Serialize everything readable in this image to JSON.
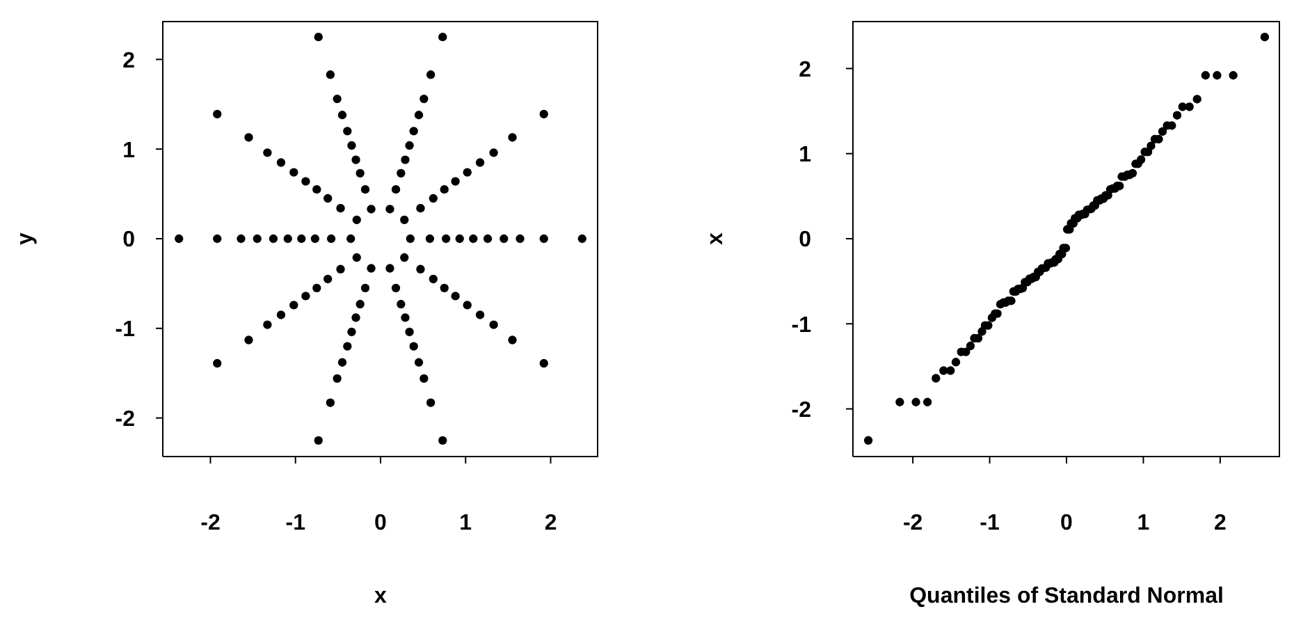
{
  "chart_data": [
    {
      "type": "scatter",
      "xlabel": "x",
      "ylabel": "y",
      "color": "#000000",
      "marker": "circle",
      "xlim": [
        -2.56,
        2.56
      ],
      "ylim": [
        -2.43,
        2.43
      ],
      "xticks": [
        -2,
        -1,
        0,
        1,
        2
      ],
      "yticks": [
        -2,
        -1,
        0,
        1,
        2
      ],
      "x": [
        0.35,
        0.58,
        0.77,
        0.93,
        1.09,
        1.26,
        1.45,
        1.64,
        1.92,
        2.37,
        0.28,
        0.47,
        0.62,
        0.75,
        0.88,
        1.02,
        1.17,
        1.33,
        1.55,
        1.92,
        0.11,
        0.18,
        0.24,
        0.29,
        0.34,
        0.39,
        0.45,
        0.51,
        0.59,
        0.73,
        -0.11,
        -0.18,
        -0.24,
        -0.29,
        -0.34,
        -0.39,
        -0.45,
        -0.51,
        -0.59,
        -0.73,
        -0.28,
        -0.47,
        -0.62,
        -0.75,
        -0.88,
        -1.02,
        -1.17,
        -1.33,
        -1.55,
        -1.92,
        -0.35,
        -0.58,
        -0.77,
        -0.93,
        -1.09,
        -1.26,
        -1.45,
        -1.64,
        -1.92,
        -2.37,
        -0.28,
        -0.47,
        -0.62,
        -0.75,
        -0.88,
        -1.02,
        -1.17,
        -1.33,
        -1.55,
        -1.92,
        -0.11,
        -0.18,
        -0.24,
        -0.29,
        -0.34,
        -0.39,
        -0.45,
        -0.51,
        -0.59,
        -0.73,
        0.11,
        0.18,
        0.24,
        0.29,
        0.34,
        0.39,
        0.45,
        0.51,
        0.59,
        0.73,
        0.28,
        0.47,
        0.62,
        0.75,
        0.88,
        1.02,
        1.17,
        1.33,
        1.55,
        1.92
      ],
      "values": [
        0,
        0,
        0,
        0,
        0,
        0,
        0,
        0,
        0,
        0,
        0.21,
        0.34,
        0.45,
        0.55,
        0.64,
        0.74,
        0.85,
        0.96,
        1.13,
        1.39,
        0.33,
        0.55,
        0.73,
        0.88,
        1.04,
        1.2,
        1.38,
        1.56,
        1.83,
        2.25,
        0.33,
        0.55,
        0.73,
        0.88,
        1.04,
        1.2,
        1.38,
        1.56,
        1.83,
        2.25,
        0.21,
        0.34,
        0.45,
        0.55,
        0.64,
        0.74,
        0.85,
        0.96,
        1.13,
        1.39,
        0,
        0,
        0,
        0,
        0,
        0,
        0,
        0,
        0,
        0,
        -0.21,
        -0.34,
        -0.45,
        -0.55,
        -0.64,
        -0.74,
        -0.85,
        -0.96,
        -1.13,
        -1.39,
        -0.33,
        -0.55,
        -0.73,
        -0.88,
        -1.04,
        -1.2,
        -1.38,
        -1.56,
        -1.83,
        -2.25,
        -0.33,
        -0.55,
        -0.73,
        -0.88,
        -1.04,
        -1.2,
        -1.38,
        -1.56,
        -1.83,
        -2.25,
        -0.21,
        -0.34,
        -0.45,
        -0.55,
        -0.64,
        -0.74,
        -0.85,
        -0.96,
        -1.13,
        -1.39
      ]
    },
    {
      "type": "scatter",
      "xlabel": "Quantiles of Standard Normal",
      "ylabel": "x",
      "color": "#000000",
      "marker": "circle",
      "xlim": [
        -2.78,
        2.78
      ],
      "ylim": [
        -2.56,
        2.56
      ],
      "xticks": [
        -2,
        -1,
        0,
        1,
        2
      ],
      "yticks": [
        -2,
        -1,
        0,
        1,
        2
      ],
      "x": [
        -2.58,
        -2.17,
        -1.96,
        -1.81,
        -1.7,
        -1.6,
        -1.51,
        -1.44,
        -1.37,
        -1.31,
        -1.25,
        -1.2,
        -1.15,
        -1.1,
        -1.06,
        -1.02,
        -0.97,
        -0.93,
        -0.9,
        -0.86,
        -0.82,
        -0.79,
        -0.76,
        -0.72,
        -0.69,
        -0.66,
        -0.63,
        -0.6,
        -0.57,
        -0.54,
        -0.51,
        -0.48,
        -0.45,
        -0.43,
        -0.4,
        -0.37,
        -0.35,
        -0.32,
        -0.27,
        -0.24,
        -0.21,
        -0.19,
        -0.16,
        -0.14,
        -0.11,
        -0.09,
        -0.06,
        -0.04,
        -0.01,
        0.01,
        0.04,
        0.06,
        0.09,
        0.11,
        0.14,
        0.16,
        0.19,
        0.21,
        0.24,
        0.27,
        0.32,
        0.35,
        0.37,
        0.4,
        0.43,
        0.45,
        0.48,
        0.51,
        0.54,
        0.57,
        0.6,
        0.63,
        0.66,
        0.69,
        0.72,
        0.76,
        0.79,
        0.82,
        0.86,
        0.9,
        0.93,
        0.97,
        1.02,
        1.06,
        1.1,
        1.15,
        1.2,
        1.25,
        1.31,
        1.37,
        1.44,
        1.51,
        1.6,
        1.7,
        1.81,
        1.96,
        2.17,
        2.58
      ],
      "values": [
        -2.37,
        -1.92,
        -1.92,
        -1.92,
        -1.64,
        -1.55,
        -1.55,
        -1.45,
        -1.33,
        -1.33,
        -1.26,
        -1.17,
        -1.17,
        -1.09,
        -1.02,
        -1.02,
        -0.93,
        -0.88,
        -0.88,
        -0.77,
        -0.75,
        -0.75,
        -0.73,
        -0.73,
        -0.62,
        -0.62,
        -0.59,
        -0.59,
        -0.58,
        -0.51,
        -0.51,
        -0.47,
        -0.47,
        -0.45,
        -0.45,
        -0.39,
        -0.39,
        -0.35,
        -0.34,
        -0.29,
        -0.29,
        -0.28,
        -0.28,
        -0.24,
        -0.24,
        -0.18,
        -0.18,
        -0.11,
        -0.11,
        0.11,
        0.11,
        0.18,
        0.18,
        0.24,
        0.24,
        0.28,
        0.28,
        0.29,
        0.29,
        0.34,
        0.35,
        0.39,
        0.39,
        0.45,
        0.45,
        0.47,
        0.47,
        0.51,
        0.51,
        0.58,
        0.59,
        0.59,
        0.62,
        0.62,
        0.73,
        0.73,
        0.75,
        0.75,
        0.77,
        0.88,
        0.88,
        0.93,
        1.02,
        1.02,
        1.09,
        1.17,
        1.17,
        1.26,
        1.33,
        1.33,
        1.45,
        1.55,
        1.55,
        1.64,
        1.92,
        1.92,
        1.92,
        2.37
      ]
    }
  ]
}
